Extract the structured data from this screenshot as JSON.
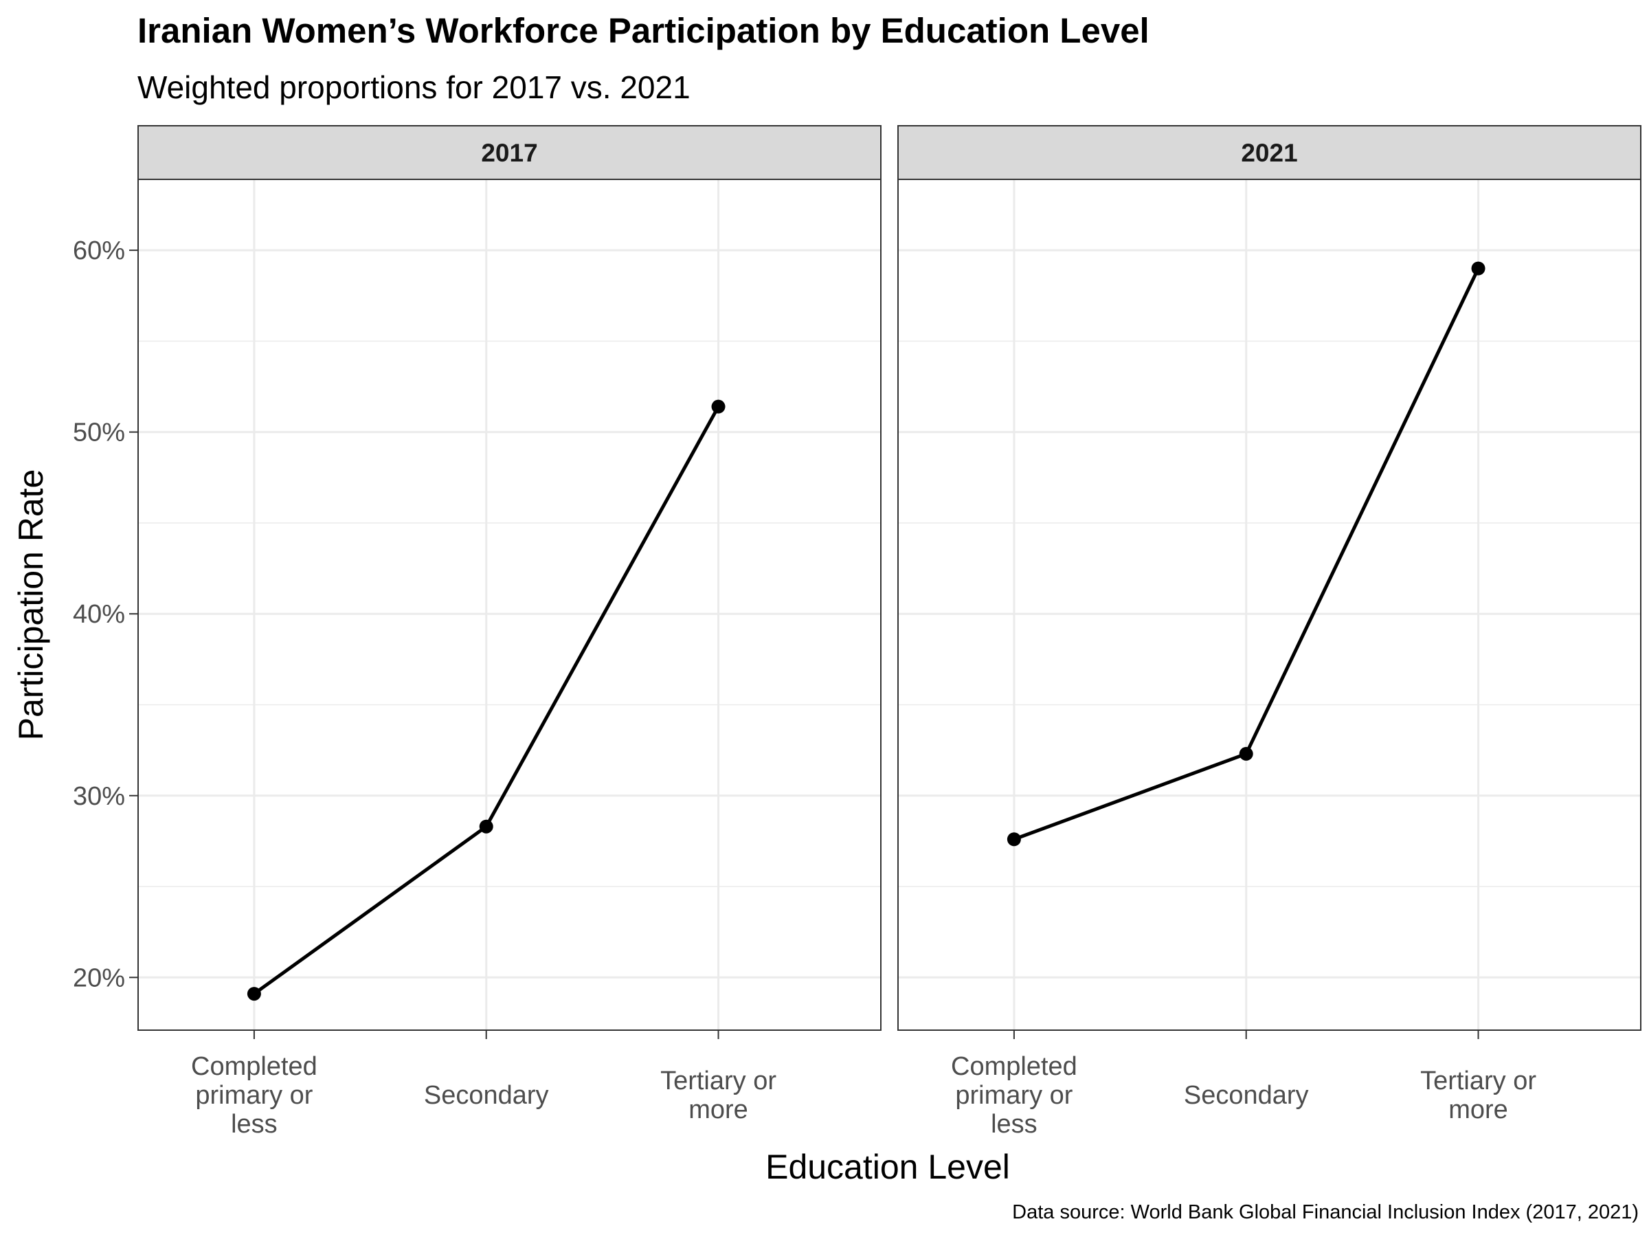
{
  "chart_data": {
    "type": "line",
    "title": "Iranian Women’s Workforce Participation by Education Level",
    "subtitle": "Weighted proportions for 2017 vs. 2021",
    "xlabel": "Education Level",
    "ylabel": "Participation Rate",
    "caption": "Data source: World Bank Global Financial Inclusion Index (2017, 2021)",
    "categories": [
      [
        "Completed",
        "primary or",
        "less"
      ],
      [
        "Secondary"
      ],
      [
        "Tertiary or",
        "more"
      ]
    ],
    "ylim": [
      17.1,
      63.9
    ],
    "yticks": [
      20,
      30,
      40,
      50,
      60
    ],
    "ytick_labels": [
      "20%",
      "30%",
      "40%",
      "50%",
      "60%"
    ],
    "grid": true,
    "line_color": "#000000",
    "panels": [
      {
        "name": "2017",
        "values": [
          19.1,
          28.3,
          51.4
        ]
      },
      {
        "name": "2021",
        "values": [
          27.6,
          32.3,
          59.0
        ]
      }
    ]
  }
}
